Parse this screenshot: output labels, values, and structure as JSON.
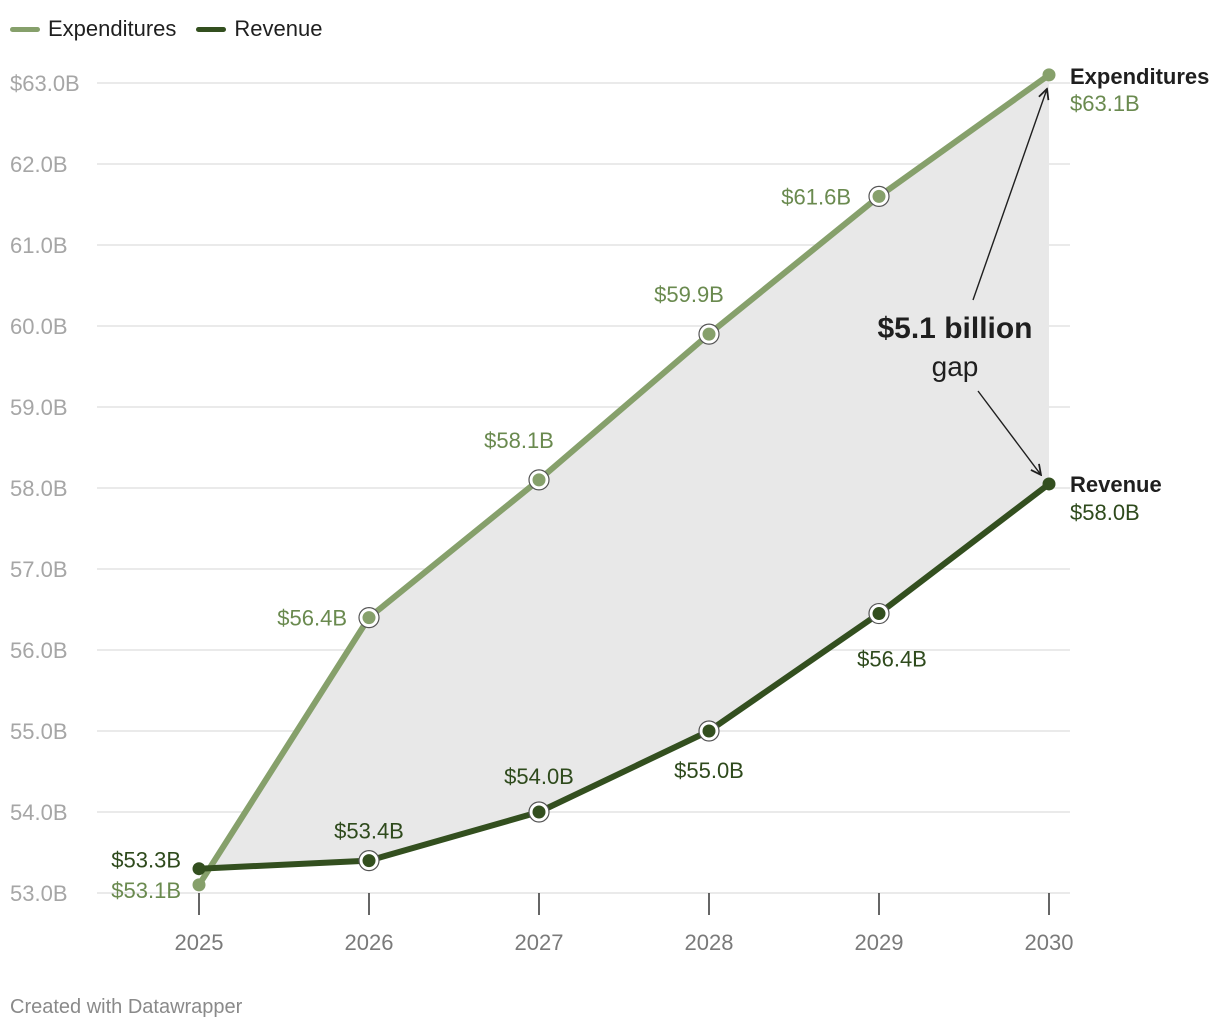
{
  "colors": {
    "expenditures": "#86a06b",
    "revenue": "#334f1f",
    "expenditures_label": "#6a8a4f",
    "revenue_label": "#2e4a1c",
    "gap_fill": "#e8e8e8",
    "grid": "#e3e3e3",
    "axis_text": "#a6a6a6",
    "x_text": "#7a7a7a"
  },
  "chart_data": {
    "type": "line",
    "x": [
      2025,
      2026,
      2027,
      2028,
      2029,
      2030
    ],
    "x_tick_labels": [
      "2025",
      "2026",
      "2027",
      "2028",
      "2029",
      "2030"
    ],
    "ylim": [
      53.0,
      63.0
    ],
    "y_ticks": [
      63,
      62,
      61,
      60,
      59,
      58,
      57,
      56,
      55,
      54,
      53
    ],
    "y_tick_labels": [
      "$63.0B",
      "62.0B",
      "61.0B",
      "60.0B",
      "59.0B",
      "58.0B",
      "57.0B",
      "56.0B",
      "55.0B",
      "54.0B",
      "53.0B"
    ],
    "grid": true,
    "legend_position": "top-left",
    "series": [
      {
        "name": "Expenditures",
        "values": [
          53.1,
          56.4,
          58.1,
          59.9,
          61.6,
          63.1
        ],
        "labels": [
          "$53.1B",
          "$56.4B",
          "$58.1B",
          "$59.9B",
          "$61.6B",
          "$63.1B"
        ],
        "end_label": "Expenditures"
      },
      {
        "name": "Revenue",
        "values": [
          53.3,
          53.4,
          54.0,
          55.0,
          56.45,
          58.05
        ],
        "labels": [
          "$53.3B",
          "$53.4B",
          "$54.0B",
          "$55.0B",
          "$56.4B",
          "$58.0B"
        ],
        "end_label": "Revenue"
      }
    ],
    "annotation": {
      "title": "$5.1 billion",
      "subtitle": "gap"
    }
  },
  "legend": {
    "items": [
      {
        "label": "Expenditures"
      },
      {
        "label": "Revenue"
      }
    ]
  },
  "footer": {
    "text": "Created with Datawrapper"
  }
}
